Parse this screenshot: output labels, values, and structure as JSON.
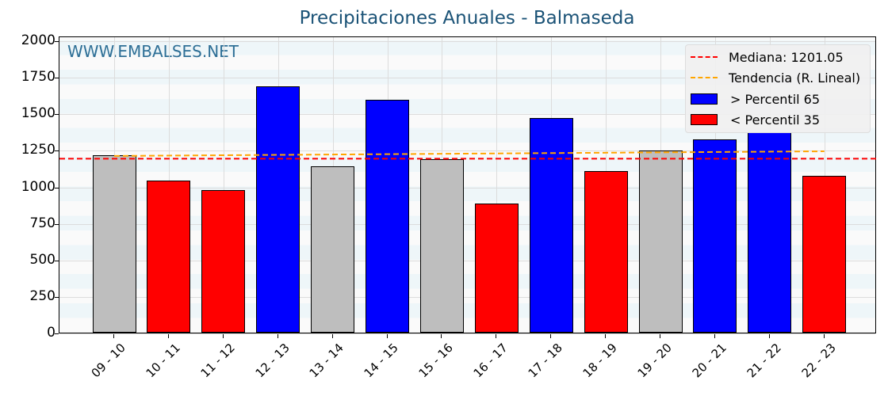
{
  "chart_data": {
    "type": "bar",
    "title": "Precipitaciones Anuales - Balmaseda",
    "watermark": "WWW.EMBALSES.NET",
    "xlabel": "",
    "ylabel": "",
    "ylim": [
      0,
      2000
    ],
    "yticks": [
      "0",
      "250",
      "500",
      "750",
      "1000",
      "1250",
      "1500",
      "1750",
      "2000"
    ],
    "grid": true,
    "legend_position": "upper right",
    "categories": [
      "09 - 10",
      "10 - 11",
      "11 - 12",
      "12 - 13",
      "13 - 14",
      "14 - 15",
      "15 - 16",
      "16 - 17",
      "17 - 18",
      "18 - 19",
      "19 - 20",
      "20 - 21",
      "21 - 22",
      "22 - 23"
    ],
    "values": [
      1212,
      1041,
      974,
      1684,
      1137,
      1593,
      1185,
      882,
      1469,
      1104,
      1245,
      1321,
      1373,
      1072
    ],
    "bar_colors": [
      "#bebebe",
      "#ff0000",
      "#ff0000",
      "#0000ff",
      "#bebebe",
      "#0000ff",
      "#bebebe",
      "#ff0000",
      "#0000ff",
      "#ff0000",
      "#bebebe",
      "#0000ff",
      "#0000ff",
      "#ff0000"
    ],
    "median": 1201.05,
    "trend": {
      "start": 1220,
      "end": 1252
    },
    "legend": [
      {
        "label": "Mediana: 1201.05",
        "type": "line",
        "color": "#ff0000"
      },
      {
        "label": "Tendencia (R. Lineal)",
        "type": "line",
        "color": "#ffa500"
      },
      {
        "label": " > Percentil 65",
        "type": "patch",
        "color": "#0000ff"
      },
      {
        "label": " < Percentil 35",
        "type": "patch",
        "color": "#ff0000"
      }
    ]
  }
}
